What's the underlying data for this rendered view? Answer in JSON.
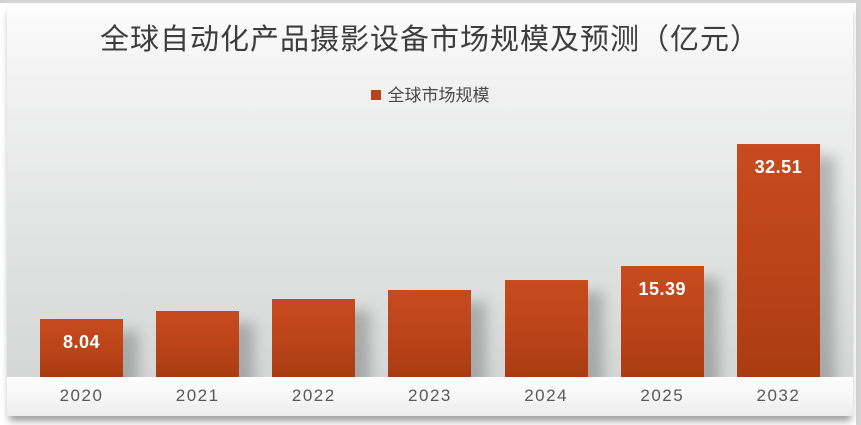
{
  "slide": {
    "background": "#fdfdfd",
    "edge_color": "#d4d4d4"
  },
  "chart_data": {
    "type": "bar",
    "title": "全球自动化产品摄影设备市场规模及预测（亿元）",
    "legend_entries": [
      "全球市场规模"
    ],
    "legend_position": "top",
    "categories": [
      "2020",
      "2021",
      "2022",
      "2023",
      "2024",
      "2025",
      "2032"
    ],
    "series": [
      {
        "name": "全球市场规模",
        "values": [
          8.04,
          9.2,
          10.8,
          12.1,
          13.5,
          15.39,
          32.51
        ]
      }
    ],
    "data_labels": [
      "8.04",
      "",
      "",
      "",
      "",
      "15.39",
      "32.51"
    ],
    "ylim": [
      0,
      34
    ],
    "grid": false,
    "y_axis_visible": false,
    "colors": {
      "bar_top": "#c74b1f",
      "bar_mid": "#bb4318",
      "bar_bottom": "#a93c12",
      "data_label": "#ffffff",
      "axis_label": "#595959",
      "title": "#3d3d3d",
      "legend_swatch": "#b94417"
    }
  }
}
